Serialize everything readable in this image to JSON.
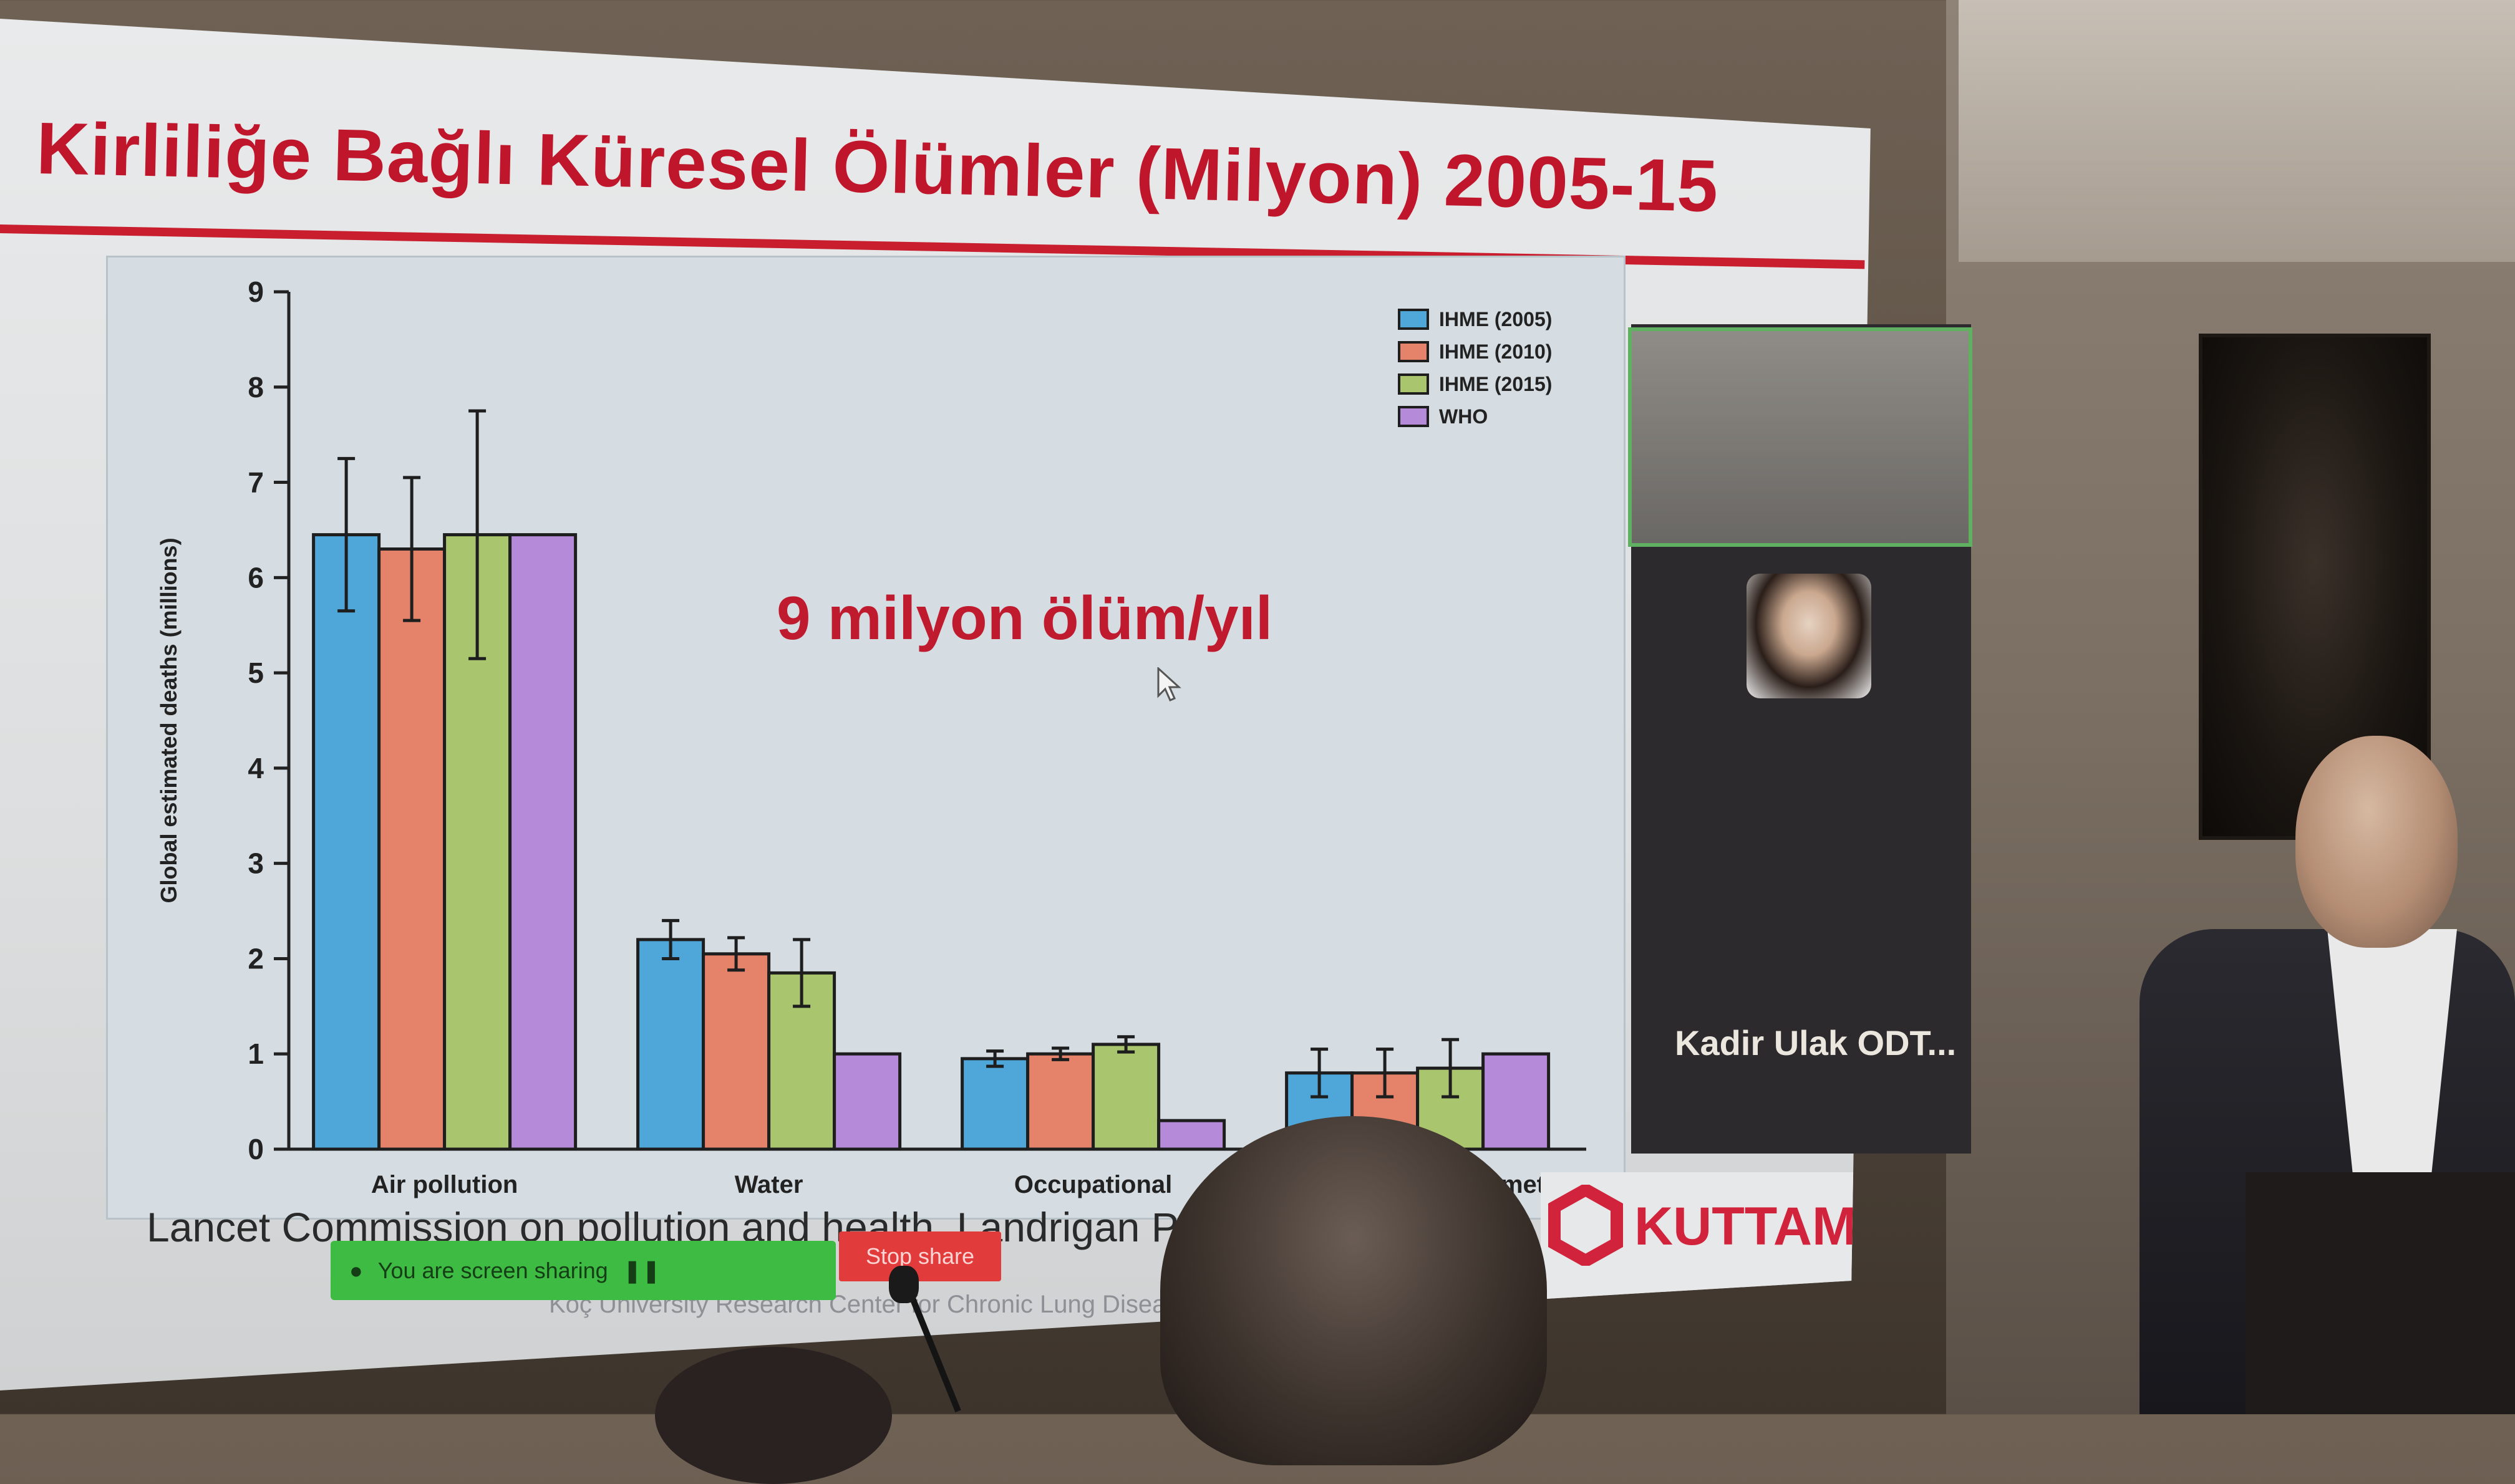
{
  "slide": {
    "title": "Kirliliğe Bağlı Küresel Ölümler (Milyon) 2005-15",
    "callout": "9 milyon ölüm/yıl",
    "caption": "Lancet Commission on pollution and health. Landrigan P",
    "footer": "Koç University Research Center for Chronic Lung Diseases"
  },
  "screen_share": {
    "status": "You are screen sharing",
    "stop_label": "Stop share"
  },
  "logo": {
    "name": "KUTTAM"
  },
  "video_panel": {
    "kadir_label": "Kadir Ulak ODT..."
  },
  "colors": {
    "title_red": "#c0162b",
    "share_green": "#3dbb43",
    "stop_red": "#e23b3b",
    "series": [
      "#4fa6d8",
      "#e5826a",
      "#a9c56d",
      "#b48ad9"
    ]
  },
  "chart_data": {
    "type": "bar",
    "ylabel": "Global estimated deaths (millions)",
    "ylim": [
      0,
      9
    ],
    "yticks": [
      0,
      1,
      2,
      3,
      4,
      5,
      6,
      7,
      8,
      9
    ],
    "categories": [
      "Air pollution",
      "Water",
      "Occupational",
      "Soil, chemicals, and metals"
    ],
    "series": [
      {
        "name": "IHME (2005)",
        "values": [
          6.45,
          2.2,
          0.95,
          0.8
        ],
        "err": [
          0.8,
          0.2,
          0.08,
          0.25
        ]
      },
      {
        "name": "IHME (2010)",
        "values": [
          6.3,
          2.05,
          1.0,
          0.8
        ],
        "err": [
          0.75,
          0.17,
          0.06,
          0.25
        ]
      },
      {
        "name": "IHME (2015)",
        "values": [
          6.45,
          1.85,
          1.1,
          0.85
        ],
        "err": [
          1.3,
          0.35,
          0.08,
          0.3
        ]
      },
      {
        "name": "WHO",
        "values": [
          6.45,
          1.0,
          0.3,
          1.0
        ],
        "err": [
          0,
          0,
          0,
          0
        ]
      }
    ],
    "legend": "top-right",
    "grid": false
  }
}
